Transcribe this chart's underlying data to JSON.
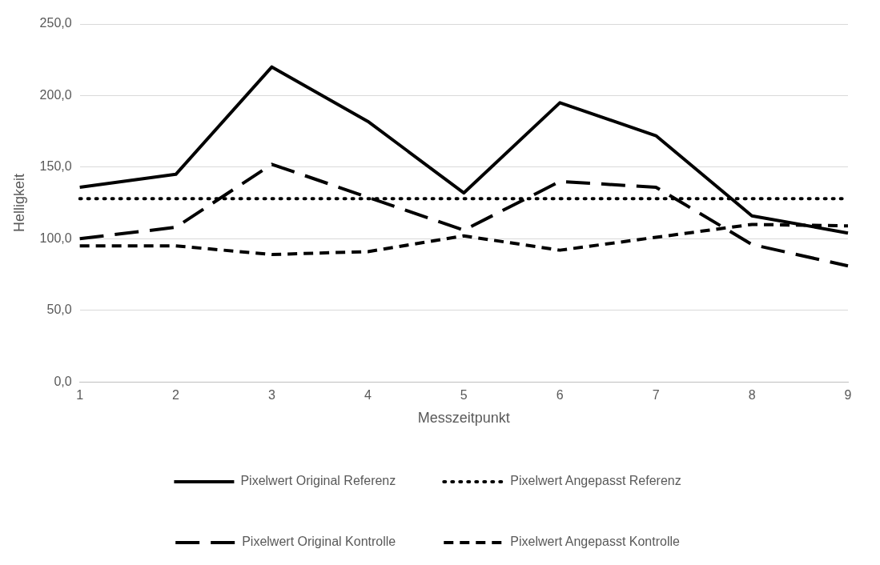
{
  "chart_data": {
    "type": "line",
    "xlabel": "Messzeitpunkt",
    "ylabel": "Helligkeit",
    "categories": [
      "1",
      "2",
      "3",
      "4",
      "5",
      "6",
      "7",
      "8",
      "9"
    ],
    "series": [
      {
        "name": "Pixelwert Original Referenz",
        "color": "#000000",
        "line_style": "solid",
        "values": [
          136,
          145,
          220,
          182,
          132,
          195,
          172,
          116,
          104
        ]
      },
      {
        "name": "Pixelwert Angepasst Referenz",
        "color": "#000000",
        "line_style": "dotted",
        "values": [
          128,
          128,
          128,
          128,
          128,
          128,
          128,
          128,
          128
        ]
      },
      {
        "name": "Pixelwert Original Kontrolle",
        "color": "#000000",
        "line_style": "dashed",
        "values": [
          100,
          108,
          152,
          129,
          106,
          140,
          136,
          96,
          81
        ]
      },
      {
        "name": "Pixelwert Angepasst Kontrolle",
        "color": "#000000",
        "line_style": "dashed",
        "values": [
          95,
          95,
          89,
          91,
          102,
          92,
          101,
          110,
          109
        ]
      }
    ],
    "ylim": [
      0,
      250
    ],
    "yticks": [
      {
        "value": 0,
        "label": "0,0"
      },
      {
        "value": 50,
        "label": "50,0"
      },
      {
        "value": 100,
        "label": "100,0"
      },
      {
        "value": 150,
        "label": "150,0"
      },
      {
        "value": 200,
        "label": "200,0"
      },
      {
        "value": 250,
        "label": "250,0"
      }
    ],
    "grid": "y",
    "legend": "bottom",
    "marker": "none"
  }
}
